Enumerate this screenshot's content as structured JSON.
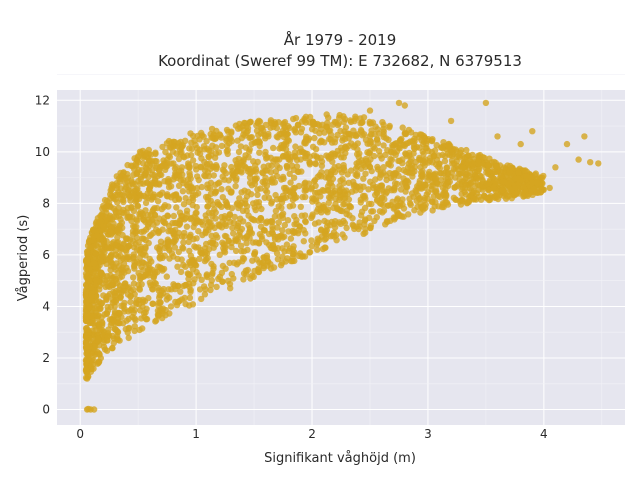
{
  "chart_data": {
    "type": "scatter",
    "title_line1": "År 1979 - 2019",
    "title_line2": "Koordinat (Sweref 99 TM): E 732682, N 6379513",
    "xlabel": "Signifikant våghöjd (m)",
    "ylabel": "Vågperiod (s)",
    "xlim": [
      -0.2,
      4.7
    ],
    "ylim": [
      -0.6,
      12.4
    ],
    "xticks": [
      0,
      1,
      2,
      3,
      4
    ],
    "yticks": [
      0,
      2,
      4,
      6,
      8,
      10,
      12
    ],
    "grid": true,
    "marker_color": "#d4a520",
    "background_color": "#e6e6ef",
    "envelope": {
      "x": [
        0.05,
        0.1,
        0.2,
        0.3,
        0.5,
        0.75,
        1.0,
        1.25,
        1.5,
        1.75,
        2.0,
        2.25,
        2.5,
        2.75,
        3.0,
        3.25,
        3.5,
        3.75,
        4.0
      ],
      "y_min": [
        1.1,
        1.5,
        2.0,
        2.4,
        3.0,
        3.6,
        4.1,
        4.6,
        5.1,
        5.6,
        6.0,
        6.5,
        6.9,
        7.3,
        7.6,
        7.9,
        8.1,
        8.2,
        8.4
      ],
      "y_max": [
        6.0,
        7.0,
        8.0,
        9.0,
        10.0,
        10.4,
        10.8,
        11.0,
        11.2,
        11.3,
        11.4,
        11.5,
        11.3,
        11.0,
        10.6,
        10.2,
        9.8,
        9.4,
        9.1
      ]
    },
    "outlier_points": [
      [
        0.06,
        0.0
      ],
      [
        0.09,
        0.0
      ],
      [
        0.12,
        0.0
      ],
      [
        0.07,
        0.02
      ],
      [
        2.5,
        11.6
      ],
      [
        2.75,
        11.9
      ],
      [
        2.8,
        11.8
      ],
      [
        3.5,
        11.9
      ],
      [
        3.2,
        11.2
      ],
      [
        3.6,
        10.6
      ],
      [
        3.9,
        10.8
      ],
      [
        4.2,
        10.3
      ],
      [
        4.35,
        10.6
      ],
      [
        4.4,
        9.6
      ],
      [
        4.47,
        9.55
      ],
      [
        4.1,
        9.4
      ],
      [
        4.05,
        8.6
      ],
      [
        3.9,
        8.8
      ],
      [
        3.7,
        8.3
      ],
      [
        4.3,
        9.7
      ],
      [
        3.8,
        10.3
      ]
    ]
  }
}
